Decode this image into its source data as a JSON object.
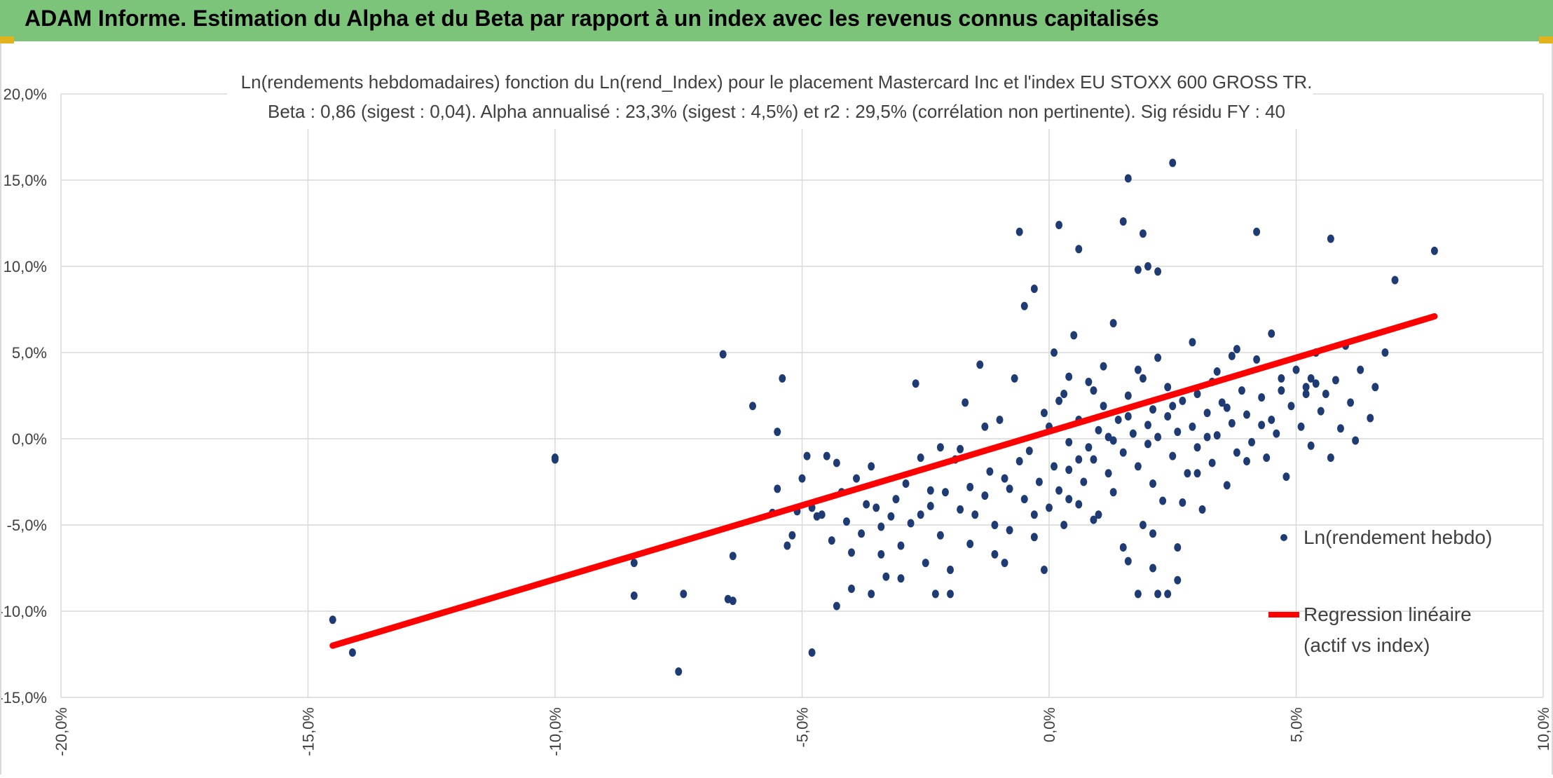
{
  "header": {
    "title": "ADAM Informe. Estimation du Alpha et du Beta par rapport à un index avec les revenus connus capitalisés",
    "bg_color": "#7dc47b",
    "accent_color": "#e3b21f"
  },
  "chart_data": {
    "type": "scatter",
    "title": "Ln(rendements hebdomadaires) fonction du Ln(rend_Index) pour le placement Mastercard Inc et l'index EU STOXX 600 GROSS TR.",
    "subtitle": "Beta : 0,86 (sigest : 0,04). Alpha annualisé : 23,3% (sigest : 4,5%) et r2 : 29,5% (corrélation non pertinente). Sig résidu FY : 40",
    "xlim": [
      -0.2,
      0.1
    ],
    "ylim": [
      -0.15,
      0.2
    ],
    "x_ticks": [
      -0.2,
      -0.15,
      -0.1,
      -0.05,
      0.0,
      0.05,
      0.1
    ],
    "x_tick_labels": [
      "-20,0%",
      "-15,0%",
      "-10,0%",
      "-5,0%",
      "0,0%",
      "5,0%",
      "10,0%"
    ],
    "y_ticks": [
      -0.15,
      -0.1,
      -0.05,
      0.0,
      0.05,
      0.1,
      0.15,
      0.2
    ],
    "y_tick_labels": [
      "-15,0%",
      "-10,0%",
      "-5,0%",
      "0,0%",
      "5,0%",
      "10,0%",
      "15,0%",
      "20,0%"
    ],
    "grid": true,
    "legend_position": "right",
    "series": [
      {
        "name": "Ln(rendement hebdo)",
        "type": "scatter",
        "color": "#1f3b73",
        "points": [
          [
            -0.145,
            -0.105
          ],
          [
            -0.141,
            -0.124
          ],
          [
            -0.1,
            -0.012
          ],
          [
            -0.1,
            -0.011
          ],
          [
            -0.084,
            -0.072
          ],
          [
            -0.084,
            -0.091
          ],
          [
            -0.075,
            -0.135
          ],
          [
            -0.074,
            -0.09
          ],
          [
            -0.066,
            0.049
          ],
          [
            -0.065,
            -0.093
          ],
          [
            -0.064,
            -0.094
          ],
          [
            -0.064,
            -0.068
          ],
          [
            -0.06,
            0.019
          ],
          [
            -0.056,
            -0.043
          ],
          [
            -0.055,
            0.004
          ],
          [
            -0.055,
            -0.029
          ],
          [
            -0.054,
            0.035
          ],
          [
            -0.053,
            -0.062
          ],
          [
            -0.052,
            -0.056
          ],
          [
            -0.051,
            -0.042
          ],
          [
            -0.05,
            -0.023
          ],
          [
            -0.049,
            -0.01
          ],
          [
            -0.048,
            -0.04
          ],
          [
            -0.048,
            -0.124
          ],
          [
            -0.047,
            -0.045
          ],
          [
            -0.046,
            -0.044
          ],
          [
            -0.045,
            -0.01
          ],
          [
            -0.044,
            -0.059
          ],
          [
            -0.043,
            -0.097
          ],
          [
            -0.043,
            -0.014
          ],
          [
            -0.042,
            -0.031
          ],
          [
            -0.041,
            -0.048
          ],
          [
            -0.04,
            -0.066
          ],
          [
            -0.04,
            -0.087
          ],
          [
            -0.039,
            -0.023
          ],
          [
            -0.038,
            -0.055
          ],
          [
            -0.037,
            -0.038
          ],
          [
            -0.036,
            -0.09
          ],
          [
            -0.036,
            -0.016
          ],
          [
            -0.035,
            -0.04
          ],
          [
            -0.034,
            -0.067
          ],
          [
            -0.034,
            -0.051
          ],
          [
            -0.033,
            -0.08
          ],
          [
            -0.032,
            -0.045
          ],
          [
            -0.031,
            -0.035
          ],
          [
            -0.03,
            -0.062
          ],
          [
            -0.03,
            -0.081
          ],
          [
            -0.029,
            -0.026
          ],
          [
            -0.028,
            -0.049
          ],
          [
            -0.027,
            0.032
          ],
          [
            -0.026,
            -0.044
          ],
          [
            -0.026,
            -0.011
          ],
          [
            -0.025,
            -0.072
          ],
          [
            -0.024,
            -0.03
          ],
          [
            -0.023,
            -0.09
          ],
          [
            -0.022,
            -0.056
          ],
          [
            -0.022,
            -0.005
          ],
          [
            -0.021,
            -0.031
          ],
          [
            -0.02,
            -0.076
          ],
          [
            -0.02,
            -0.09
          ],
          [
            -0.019,
            -0.012
          ],
          [
            -0.018,
            -0.041
          ],
          [
            -0.017,
            0.021
          ],
          [
            -0.016,
            -0.061
          ],
          [
            -0.016,
            -0.028
          ],
          [
            -0.015,
            -0.044
          ],
          [
            -0.014,
            0.043
          ],
          [
            -0.013,
            -0.033
          ],
          [
            -0.012,
            -0.019
          ],
          [
            -0.011,
            -0.05
          ],
          [
            -0.011,
            -0.067
          ],
          [
            -0.01,
            0.011
          ],
          [
            -0.009,
            -0.023
          ],
          [
            -0.009,
            -0.072
          ],
          [
            -0.008,
            -0.053
          ],
          [
            -0.007,
            0.035
          ],
          [
            -0.006,
            -0.013
          ],
          [
            -0.005,
            -0.035
          ],
          [
            -0.005,
            0.077
          ],
          [
            -0.004,
            -0.007
          ],
          [
            -0.003,
            -0.057
          ],
          [
            -0.002,
            -0.025
          ],
          [
            -0.001,
            0.015
          ],
          [
            -0.001,
            -0.076
          ],
          [
            0,
            -0.04
          ],
          [
            0,
            0.007
          ],
          [
            0.001,
            -0.016
          ],
          [
            0.001,
            0.05
          ],
          [
            0.002,
            -0.03
          ],
          [
            0.003,
            -0.05
          ],
          [
            0.003,
            0.026
          ],
          [
            0.004,
            -0.018
          ],
          [
            0.004,
            -0.002
          ],
          [
            0.005,
            0.06
          ],
          [
            0.006,
            -0.038
          ],
          [
            0.006,
            0.011
          ],
          [
            0.007,
            -0.025
          ],
          [
            0.008,
            0.033
          ],
          [
            0.008,
            -0.005
          ],
          [
            0.009,
            -0.012
          ],
          [
            0.01,
            0.005
          ],
          [
            0.01,
            -0.044
          ],
          [
            0.011,
            0.019
          ],
          [
            0.012,
            -0.02
          ],
          [
            0.012,
            0.001
          ],
          [
            0.013,
            -0.031
          ],
          [
            0.014,
            0.011
          ],
          [
            0.015,
            -0.008
          ],
          [
            0.015,
            -0.063
          ],
          [
            0.016,
            0.025
          ],
          [
            0.017,
            0.003
          ],
          [
            0.018,
            -0.016
          ],
          [
            0.018,
            0.04
          ],
          [
            0.019,
            -0.05
          ],
          [
            0.02,
            0.008
          ],
          [
            0.021,
            -0.026
          ],
          [
            0.021,
            0.017
          ],
          [
            0.022,
            0.001
          ],
          [
            0.023,
            -0.036
          ],
          [
            0.024,
            0.03
          ],
          [
            0.024,
            0.013
          ],
          [
            0.025,
            -0.01
          ],
          [
            0.026,
            -0.063
          ],
          [
            0.026,
            0.004
          ],
          [
            0.027,
            0.022
          ],
          [
            0.028,
            -0.02
          ],
          [
            0.029,
            0.007
          ],
          [
            0.029,
            0.056
          ],
          [
            0.03,
            -0.005
          ],
          [
            0.031,
            -0.041
          ],
          [
            0.032,
            0.015
          ],
          [
            0.033,
            0.033
          ],
          [
            0.033,
            -0.014
          ],
          [
            0.034,
            0.002
          ],
          [
            0.035,
            0.021
          ],
          [
            0.036,
            -0.027
          ],
          [
            0.037,
            0.009
          ],
          [
            0.037,
            0.048
          ],
          [
            0.038,
            -0.008
          ],
          [
            0.039,
            0.028
          ],
          [
            0.04,
            0.014
          ],
          [
            0.041,
            -0.002
          ],
          [
            0.042,
            0.046
          ],
          [
            0.043,
            0.024
          ],
          [
            0.044,
            -0.011
          ],
          [
            0.045,
            0.061
          ],
          [
            0.045,
            0.011
          ],
          [
            0.046,
            0.003
          ],
          [
            0.047,
            0.035
          ],
          [
            0.048,
            -0.022
          ],
          [
            0.049,
            0.019
          ],
          [
            0.05,
            0.04
          ],
          [
            0.051,
            0.007
          ],
          [
            0.052,
            0.03
          ],
          [
            0.053,
            -0.004
          ],
          [
            0.054,
            0.05
          ],
          [
            0.055,
            0.016
          ],
          [
            0.056,
            0.026
          ],
          [
            0.057,
            -0.011
          ],
          [
            0.058,
            0.034
          ],
          [
            0.059,
            0.006
          ],
          [
            0.06,
            0.054
          ],
          [
            0.061,
            0.021
          ],
          [
            0.062,
            -0.001
          ],
          [
            0.063,
            0.04
          ],
          [
            0.065,
            0.012
          ],
          [
            0.066,
            0.03
          ],
          [
            0.068,
            0.05
          ],
          [
            -0.024,
            -0.039
          ],
          [
            -0.018,
            -0.006
          ],
          [
            -0.013,
            0.007
          ],
          [
            -0.008,
            -0.029
          ],
          [
            -0.003,
            -0.044
          ],
          [
            0.002,
            0.022
          ],
          [
            0.004,
            0.036
          ],
          [
            0.006,
            -0.012
          ],
          [
            0.009,
            0.028
          ],
          [
            0.011,
            0.042
          ],
          [
            0.013,
            -0.001
          ],
          [
            0.016,
            0.013
          ],
          [
            0.019,
            0.035
          ],
          [
            0.02,
            -0.003
          ],
          [
            0.022,
            0.047
          ],
          [
            0.025,
            0.019
          ],
          [
            0.027,
            -0.037
          ],
          [
            0.03,
            0.026
          ],
          [
            0.032,
            0.001
          ],
          [
            0.034,
            0.039
          ],
          [
            0.036,
            0.018
          ],
          [
            0.038,
            0.052
          ],
          [
            0.04,
            -0.013
          ],
          [
            0.043,
            0.008
          ],
          [
            -0.006,
            0.12
          ],
          [
            -0.003,
            0.087
          ],
          [
            0.002,
            0.124
          ],
          [
            0.006,
            0.11
          ],
          [
            0.013,
            0.067
          ],
          [
            0.015,
            0.126
          ],
          [
            0.016,
            0.151
          ],
          [
            0.018,
            0.098
          ],
          [
            0.019,
            0.119
          ],
          [
            0.02,
            0.1
          ],
          [
            0.022,
            0.097
          ],
          [
            0.025,
            0.16
          ],
          [
            0.042,
            0.12
          ],
          [
            0.057,
            0.116
          ],
          [
            0.07,
            0.092
          ],
          [
            0.078,
            0.109
          ],
          [
            0.047,
            0.028
          ],
          [
            0.053,
            0.035
          ],
          [
            0.052,
            0.026
          ],
          [
            0.054,
            0.032
          ],
          [
            0.03,
            -0.02
          ],
          [
            0.026,
            -0.082
          ],
          [
            0.024,
            -0.09
          ],
          [
            0.022,
            -0.09
          ],
          [
            0.021,
            -0.075
          ],
          [
            0.021,
            -0.055
          ],
          [
            0.018,
            -0.09
          ],
          [
            0.016,
            -0.071
          ],
          [
            0.009,
            -0.047
          ],
          [
            0.004,
            -0.035
          ]
        ]
      },
      {
        "name": "Regression linéaire (actif vs index)",
        "type": "line",
        "color": "#ff0000",
        "points": [
          [
            -0.145,
            -0.12
          ],
          [
            0.078,
            0.071
          ]
        ]
      }
    ],
    "legend": [
      {
        "label": "Ln(rendement hebdo)",
        "marker": "dot"
      },
      {
        "label_line1": "Regression linéaire",
        "label_line2": "(actif vs index)",
        "marker": "line"
      }
    ]
  }
}
